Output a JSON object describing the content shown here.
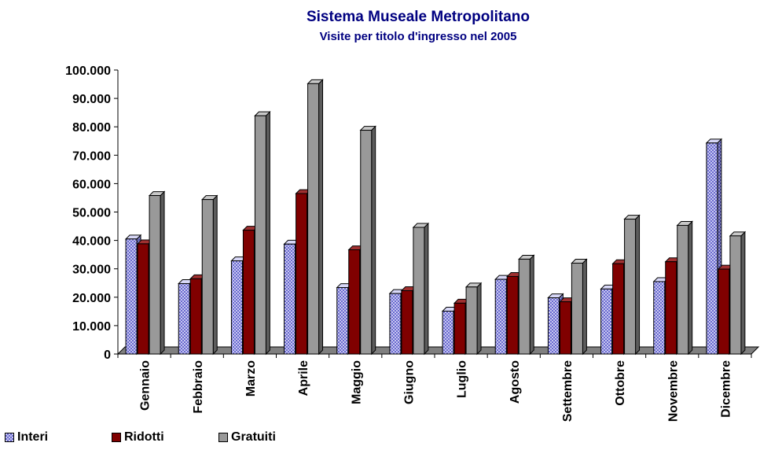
{
  "chart_data": {
    "type": "bar",
    "title": "Sistema Museale Metropolitano",
    "subtitle": "Visite per titolo d'ingresso nel 2005",
    "categories": [
      "Gennaio",
      "Febbraio",
      "Marzo",
      "Aprile",
      "Maggio",
      "Giugno",
      "Luglio",
      "Agosto",
      "Settembre",
      "Ottobre",
      "Novembre",
      "Dicembre"
    ],
    "series": [
      {
        "name": "Interi",
        "color": "#8c8cd6",
        "pattern": "checkered",
        "values": [
          40500,
          24800,
          32800,
          38700,
          23400,
          21300,
          15100,
          26300,
          19800,
          22900,
          25500,
          74300
        ]
      },
      {
        "name": "Ridotti",
        "color": "#800000",
        "values": [
          38800,
          26500,
          43600,
          56500,
          36700,
          22300,
          17900,
          27300,
          18400,
          31800,
          32500,
          29900
        ]
      },
      {
        "name": "Gratuiti",
        "color": "#999999",
        "values": [
          55800,
          54400,
          83900,
          95200,
          78800,
          44600,
          23600,
          33400,
          32000,
          47500,
          45300,
          41600
        ]
      }
    ],
    "ylim": [
      0,
      100000
    ],
    "yticks": [
      "0",
      "10.000",
      "20.000",
      "30.000",
      "40.000",
      "50.000",
      "60.000",
      "70.000",
      "80.000",
      "90.000",
      "100.000"
    ],
    "grid": false,
    "legend_position": "bottom-left",
    "style": "3d-clustered-column"
  }
}
